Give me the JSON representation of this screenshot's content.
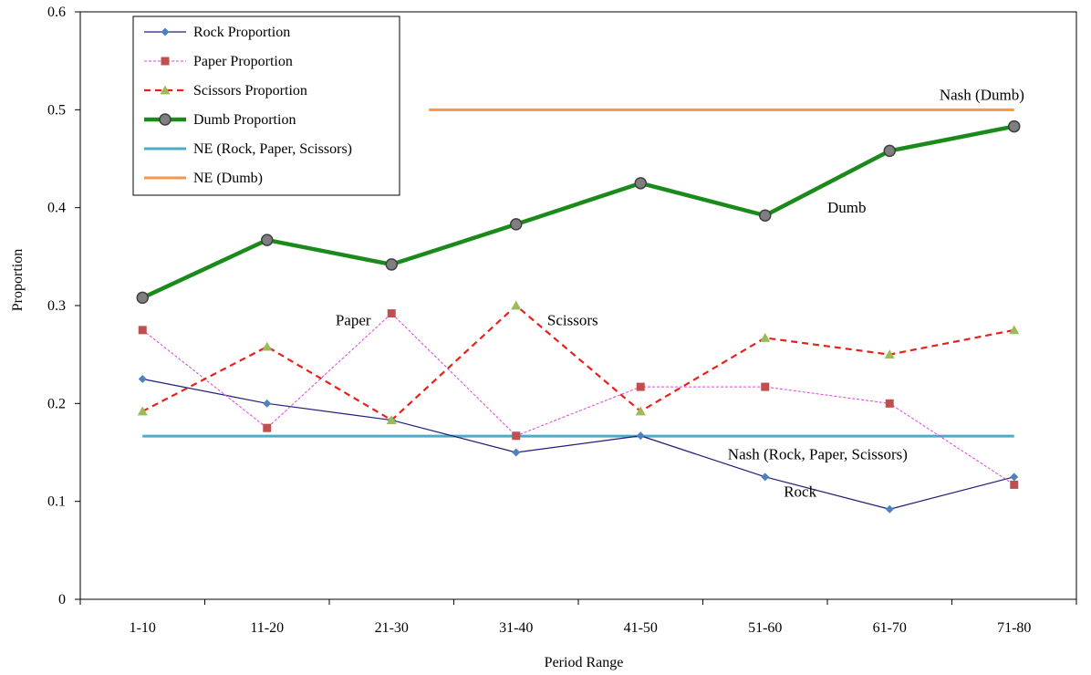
{
  "chart_data": {
    "type": "line",
    "title": "",
    "xlabel": "Period Range",
    "ylabel": "Proportion",
    "categories": [
      "1-10",
      "11-20",
      "21-30",
      "31-40",
      "41-50",
      "51-60",
      "61-70",
      "71-80"
    ],
    "ylim": [
      0,
      0.6
    ],
    "yticks": [
      0,
      0.1,
      0.2,
      0.3,
      0.4,
      0.5,
      0.6
    ],
    "ytick_labels": [
      "0",
      "0.1",
      "0.2",
      "0.3",
      "0.4",
      "0.5",
      "0.6"
    ],
    "grid": false,
    "legend_position": "top-left",
    "series": [
      {
        "key": "rock",
        "name": "Rock Proportion",
        "values": [
          0.225,
          0.2,
          0.183,
          0.15,
          0.167,
          0.125,
          0.092,
          0.125
        ],
        "color": "#1F1F7A",
        "marker_color": "#4F81BD",
        "marker": "diamond"
      },
      {
        "key": "paper",
        "name": "Paper Proportion",
        "values": [
          0.275,
          0.175,
          0.292,
          0.167,
          0.217,
          0.217,
          0.2,
          0.117
        ],
        "color": "#E040E0",
        "marker_color": "#C0504D",
        "marker": "square"
      },
      {
        "key": "scissors",
        "name": "Scissors Proportion",
        "values": [
          0.192,
          0.258,
          0.183,
          0.3,
          0.192,
          0.267,
          0.25,
          0.275
        ],
        "color": "#E8201A",
        "marker_color": "#9BBB59",
        "marker": "triangle"
      },
      {
        "key": "dumb",
        "name": "Dumb Proportion",
        "values": [
          0.308,
          0.367,
          0.342,
          0.383,
          0.425,
          0.392,
          0.458,
          0.483
        ],
        "color": "#1A8A1A",
        "marker_color": "#7F7F7F",
        "marker": "circle"
      }
    ],
    "reference_lines": [
      {
        "key": "ne_rps",
        "name": "NE (Rock, Paper, Scissors)",
        "value": 0.1667,
        "color": "#4BACC6",
        "from_index": 0,
        "to_index": 7
      },
      {
        "key": "ne_dumb",
        "name": "NE (Dumb)",
        "value": 0.5,
        "color": "#F79646",
        "from_index": 2.3,
        "to_index": 7
      }
    ],
    "annotations": [
      {
        "key": "nash_dumb",
        "text": "Nash (Dumb)",
        "x_index": 6.4,
        "y": 0.51
      },
      {
        "key": "dumb",
        "text": "Dumb",
        "x_index": 5.5,
        "y": 0.395
      },
      {
        "key": "paper",
        "text": "Paper",
        "x_index": 1.55,
        "y": 0.28
      },
      {
        "key": "scissors",
        "text": "Scissors",
        "x_index": 3.25,
        "y": 0.28
      },
      {
        "key": "nash_rps",
        "text": "Nash (Rock, Paper, Scissors)",
        "x_index": 4.7,
        "y": 0.143
      },
      {
        "key": "rock",
        "text": "Rock",
        "x_index": 5.15,
        "y": 0.105
      }
    ]
  }
}
